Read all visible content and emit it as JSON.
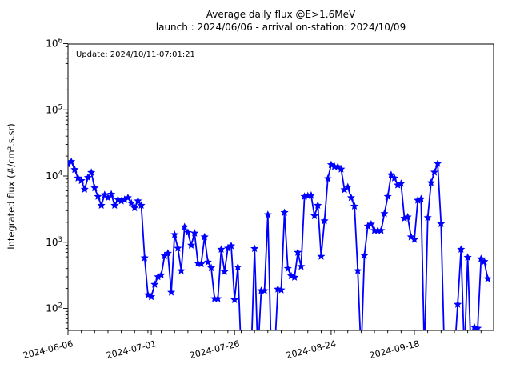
{
  "figure": {
    "title": "Average daily flux @E>1.6MeV",
    "subtitle": "launch : 2024/06/06 - arrival on-station: 2024/10/09",
    "annotation": "Update: 2024/10/11-07:01:21",
    "background": "#ffffff",
    "axis_color": "#000000"
  },
  "chart_data": {
    "type": "line",
    "title": "Average daily flux @E>1.6MeV",
    "subtitle": "launch : 2024/06/06 - arrival on-station: 2024/10/09",
    "xlabel": "",
    "ylabel": "Integrated flux (#/cm².s.sr)",
    "y_scale": "log",
    "ylim": [
      47,
      1000000
    ],
    "y_tick_exponents": [
      6,
      5,
      4,
      3,
      2
    ],
    "xlim_dates": [
      "2024-06-06",
      "2024-10-12"
    ],
    "x_ticks": [
      {
        "label": "2024-06-06",
        "day": 0
      },
      {
        "label": "2024-07-01",
        "day": 25
      },
      {
        "label": "2024-07-26",
        "day": 50
      },
      {
        "label": "2024-08-24",
        "day": 79
      },
      {
        "label": "2024-09-18",
        "day": 104
      }
    ],
    "grid": false,
    "legend": "none",
    "line_color": "#0000ff",
    "marker": "star",
    "offscale_low_value": 20,
    "series": [
      {
        "name": "average-daily-flux",
        "start_date": "2024-06-06",
        "cadence": "daily",
        "values": [
          15000,
          16500,
          12500,
          9300,
          8500,
          6300,
          9500,
          11300,
          6600,
          4900,
          3600,
          5200,
          4700,
          5300,
          3600,
          4400,
          4200,
          4400,
          4700,
          3900,
          3300,
          4200,
          3600,
          580,
          160,
          150,
          230,
          300,
          320,
          620,
          680,
          175,
          1300,
          810,
          370,
          1700,
          1400,
          900,
          1370,
          480,
          470,
          1200,
          500,
          410,
          140,
          140,
          780,
          360,
          810,
          880,
          135,
          420,
          20,
          20,
          20,
          20,
          800,
          20,
          185,
          185,
          2600,
          20,
          20,
          195,
          190,
          2800,
          400,
          310,
          295,
          700,
          430,
          4900,
          5000,
          5100,
          2500,
          3600,
          610,
          2100,
          9100,
          14800,
          13900,
          13800,
          12700,
          6200,
          6800,
          4700,
          3500,
          370,
          20,
          630,
          1750,
          1870,
          1500,
          1500,
          1500,
          2700,
          4900,
          10400,
          9300,
          7300,
          7700,
          2300,
          2400,
          1200,
          1100,
          4300,
          4500,
          20,
          2350,
          7900,
          11400,
          15400,
          1900,
          20,
          20,
          20,
          20,
          115,
          780,
          20,
          590,
          20,
          52,
          50,
          560,
          510,
          280
        ]
      }
    ]
  }
}
